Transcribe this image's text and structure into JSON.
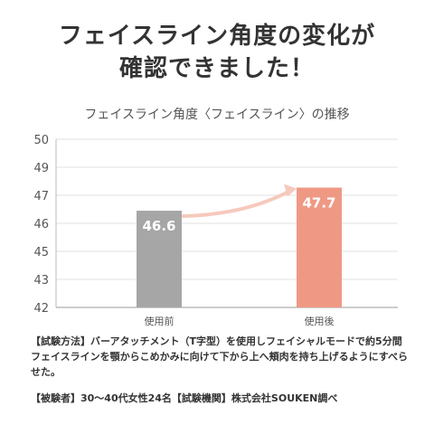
{
  "headline": {
    "line1": "フェイスライン角度の変化が",
    "line2": "確認できました！"
  },
  "chart_data": {
    "type": "bar",
    "title": "フェイスライン角度〈フェイスライン〉の推移",
    "xlabel": "",
    "ylabel": "",
    "categories": [
      "使用前",
      "使用後"
    ],
    "values": [
      46.6,
      47.7
    ],
    "value_labels": [
      "46.6",
      "47.7"
    ],
    "y_ticks": [
      "50",
      "49",
      "47",
      "46",
      "45",
      "43",
      "42"
    ],
    "ylim": [
      42,
      50
    ],
    "grid": true,
    "annotation": "arrow from 使用前 to 使用後",
    "colors": {
      "before_bar": "#a6a6a6",
      "after_bar": "#ef9985",
      "arrow": "#f6c9bc",
      "grid": "#e2e2e2"
    }
  },
  "notes": {
    "method": "【試験方法】バーアタッチメント（T字型）を使用しフェイシャルモードで約5分間フェイスラインを顎からこめかみに向けて下から上へ頬肉を持ち上げるようにすべらせた。",
    "subjects": "【被験者】30〜40代女性24名【試験機関】株式会社SOUKEN調べ"
  }
}
